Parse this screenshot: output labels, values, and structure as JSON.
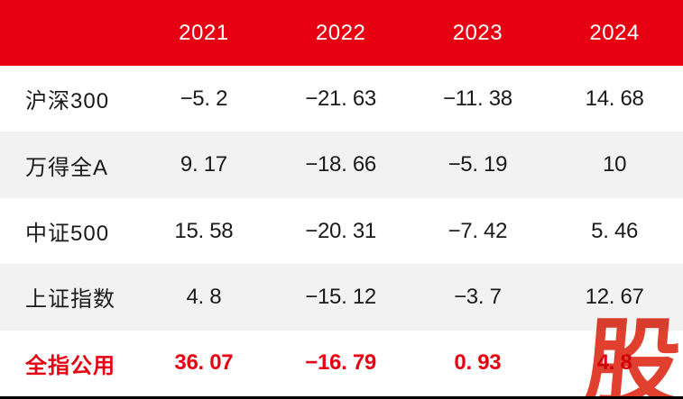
{
  "colors": {
    "header_red": "#e60012",
    "header_text": "#ffffff",
    "row_alt_gray": "#f2f2f2",
    "text_black": "#1a1a1a",
    "highlight_red": "#e60012",
    "watermark_red": "#e2402e",
    "bottom_line": "#000000"
  },
  "header": {
    "corner": "",
    "years": [
      "2021",
      "2022",
      "2023",
      "2024"
    ]
  },
  "rows": [
    {
      "label": "沪深300",
      "highlight": false,
      "values": [
        "−5. 2",
        "−21. 63",
        "−11. 38",
        "14. 68"
      ]
    },
    {
      "label": "万得全A",
      "highlight": false,
      "values": [
        "9. 17",
        "−18. 66",
        "−5. 19",
        "10"
      ]
    },
    {
      "label": "中证500",
      "highlight": false,
      "values": [
        "15. 58",
        "−20. 31",
        "−7. 42",
        "5. 46"
      ]
    },
    {
      "label": "上证指数",
      "highlight": false,
      "values": [
        "4. 8",
        "−15. 12",
        "−3. 7",
        "12. 67"
      ]
    },
    {
      "label": "全指公用",
      "highlight": true,
      "values": [
        "36. 07",
        "−16. 79",
        "0. 93",
        "4. 8"
      ]
    }
  ],
  "watermark": {
    "char": "股"
  },
  "chart_data": {
    "type": "table",
    "title": "",
    "categories": [
      "2021",
      "2022",
      "2023",
      "2024"
    ],
    "series": [
      {
        "name": "沪深300",
        "values": [
          -5.2,
          -21.63,
          -11.38,
          14.68
        ]
      },
      {
        "name": "万得全A",
        "values": [
          9.17,
          -18.66,
          -5.19,
          10
        ]
      },
      {
        "name": "中证500",
        "values": [
          15.58,
          -20.31,
          -7.42,
          5.46
        ]
      },
      {
        "name": "上证指数",
        "values": [
          4.8,
          -15.12,
          -3.7,
          12.67
        ]
      },
      {
        "name": "全指公用",
        "values": [
          36.07,
          -16.79,
          0.93,
          4.8
        ]
      }
    ],
    "annotations": [
      "全指公用 row rendered in bold red (highlighted)",
      "全指公用 2024 value partially obscured by red 股 watermark"
    ]
  }
}
